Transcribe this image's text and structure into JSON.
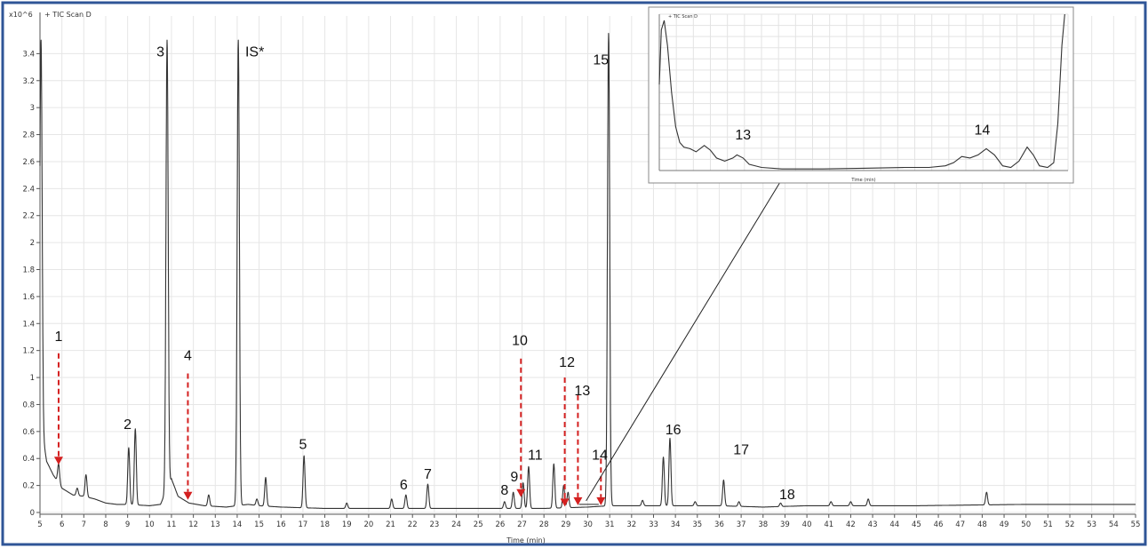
{
  "chart_data": {
    "type": "line",
    "title": "+ TIC Scan D",
    "xlabel": "Time (min)",
    "ylabel_multiplier": "x10^6",
    "xlim": [
      5,
      55
    ],
    "ylim": [
      0,
      3.6
    ],
    "x_ticks": [
      "5",
      "6",
      "7",
      "8",
      "9",
      "10",
      "11",
      "12",
      "13",
      "14",
      "15",
      "16",
      "17",
      "18",
      "19",
      "20",
      "21",
      "22",
      "23",
      "24",
      "25",
      "26",
      "27",
      "28",
      "29",
      "30",
      "31",
      "32",
      "33",
      "34",
      "35",
      "36",
      "37",
      "38",
      "39",
      "40",
      "41",
      "42",
      "43",
      "44",
      "45",
      "46",
      "47",
      "48",
      "49",
      "50",
      "51",
      "52",
      "53",
      "54",
      "55"
    ],
    "y_ticks": [
      "0",
      "0.2",
      "0.4",
      "0.6",
      "0.8",
      "1",
      "1.2",
      "1.4",
      "1.6",
      "1.8",
      "2",
      "2.2",
      "2.4",
      "2.6",
      "2.8",
      "3",
      "3.2",
      "3.4"
    ],
    "baseline_points": [
      [
        5.0,
        0.9
      ],
      [
        5.1,
        0.6
      ],
      [
        5.3,
        0.38
      ],
      [
        5.6,
        0.28
      ],
      [
        6.0,
        0.18
      ],
      [
        6.5,
        0.13
      ],
      [
        7.0,
        0.12
      ],
      [
        7.5,
        0.1
      ],
      [
        8.0,
        0.07
      ],
      [
        8.5,
        0.06
      ],
      [
        9.0,
        0.06
      ],
      [
        10.0,
        0.05
      ],
      [
        10.5,
        0.06
      ],
      [
        11.0,
        0.25
      ],
      [
        11.3,
        0.12
      ],
      [
        11.8,
        0.07
      ],
      [
        12.5,
        0.05
      ],
      [
        13.5,
        0.04
      ],
      [
        14.0,
        0.05
      ],
      [
        14.5,
        0.06
      ],
      [
        15.0,
        0.05
      ],
      [
        16.0,
        0.04
      ],
      [
        18.0,
        0.03
      ],
      [
        20.0,
        0.03
      ],
      [
        25.0,
        0.03
      ],
      [
        28.0,
        0.03
      ],
      [
        30.0,
        0.04
      ],
      [
        31.0,
        0.05
      ],
      [
        33.0,
        0.05
      ],
      [
        36.0,
        0.05
      ],
      [
        38.0,
        0.04
      ],
      [
        40.0,
        0.05
      ],
      [
        45.0,
        0.05
      ],
      [
        50.0,
        0.06
      ],
      [
        55.0,
        0.06
      ]
    ],
    "peaks": [
      {
        "x": 5.05,
        "y": 3.5
      },
      {
        "x": 5.85,
        "y": 0.36
      },
      {
        "x": 6.7,
        "y": 0.18
      },
      {
        "x": 7.1,
        "y": 0.28
      },
      {
        "x": 9.05,
        "y": 0.48
      },
      {
        "x": 9.35,
        "y": 0.62
      },
      {
        "x": 10.8,
        "y": 3.5
      },
      {
        "x": 12.7,
        "y": 0.13
      },
      {
        "x": 14.05,
        "y": 3.5
      },
      {
        "x": 14.9,
        "y": 0.1
      },
      {
        "x": 15.3,
        "y": 0.26
      },
      {
        "x": 17.05,
        "y": 0.42
      },
      {
        "x": 19.0,
        "y": 0.07
      },
      {
        "x": 21.05,
        "y": 0.1
      },
      {
        "x": 21.7,
        "y": 0.13
      },
      {
        "x": 22.7,
        "y": 0.21
      },
      {
        "x": 26.2,
        "y": 0.08
      },
      {
        "x": 26.6,
        "y": 0.15
      },
      {
        "x": 27.05,
        "y": 0.22
      },
      {
        "x": 27.3,
        "y": 0.34
      },
      {
        "x": 28.45,
        "y": 0.36
      },
      {
        "x": 28.9,
        "y": 0.2
      },
      {
        "x": 29.1,
        "y": 0.15
      },
      {
        "x": 30.95,
        "y": 3.55
      },
      {
        "x": 32.5,
        "y": 0.09
      },
      {
        "x": 33.45,
        "y": 0.41
      },
      {
        "x": 33.75,
        "y": 0.55
      },
      {
        "x": 34.9,
        "y": 0.08
      },
      {
        "x": 36.2,
        "y": 0.24
      },
      {
        "x": 36.9,
        "y": 0.08
      },
      {
        "x": 38.8,
        "y": 0.07
      },
      {
        "x": 41.1,
        "y": 0.08
      },
      {
        "x": 42.0,
        "y": 0.08
      },
      {
        "x": 42.8,
        "y": 0.1
      },
      {
        "x": 48.2,
        "y": 0.15
      }
    ],
    "peak_labels": [
      {
        "label": "1",
        "x": 5.85,
        "y": 1.27
      },
      {
        "label": "2",
        "x": 9.0,
        "y": 0.62
      },
      {
        "label": "3",
        "x": 10.5,
        "y": 3.38
      },
      {
        "label": "4",
        "x": 11.75,
        "y": 1.13
      },
      {
        "label": "IS*",
        "x": 14.8,
        "y": 3.38
      },
      {
        "label": "5",
        "x": 17.0,
        "y": 0.47
      },
      {
        "label": "6",
        "x": 21.6,
        "y": 0.17
      },
      {
        "label": "7",
        "x": 22.7,
        "y": 0.25
      },
      {
        "label": "8",
        "x": 26.2,
        "y": 0.13
      },
      {
        "label": "9",
        "x": 26.65,
        "y": 0.23
      },
      {
        "label": "10",
        "x": 26.9,
        "y": 1.24
      },
      {
        "label": "11",
        "x": 27.6,
        "y": 0.39
      },
      {
        "label": "12",
        "x": 29.05,
        "y": 1.08
      },
      {
        "label": "13",
        "x": 29.75,
        "y": 0.87
      },
      {
        "label": "14",
        "x": 30.55,
        "y": 0.39
      },
      {
        "label": "15",
        "x": 30.6,
        "y": 3.32
      },
      {
        "label": "16",
        "x": 33.9,
        "y": 0.58
      },
      {
        "label": "17",
        "x": 37.0,
        "y": 0.43
      },
      {
        "label": "18",
        "x": 39.1,
        "y": 0.1
      }
    ],
    "red_arrows": [
      {
        "peak": "1",
        "x": 5.85,
        "y_top": 1.18,
        "y_bottom": 0.36
      },
      {
        "peak": "4",
        "x": 11.75,
        "y_top": 1.03,
        "y_bottom": 0.1
      },
      {
        "peak": "10",
        "x": 26.95,
        "y_top": 1.14,
        "y_bottom": 0.12
      },
      {
        "peak": "12",
        "x": 28.95,
        "y_top": 1.0,
        "y_bottom": 0.05
      },
      {
        "peak": "13",
        "x": 29.55,
        "y_top": 0.87,
        "y_bottom": 0.06
      },
      {
        "peak": "14",
        "x": 30.6,
        "y_top": 0.4,
        "y_bottom": 0.06
      }
    ],
    "inset": {
      "title": "+ TIC Scan D",
      "xlabel": "Time (min)",
      "labels": [
        "13",
        "14"
      ],
      "zoom_region": [
        29.6,
        30.5
      ]
    },
    "grid": true
  },
  "colors": {
    "frame": "#2f5597",
    "trace": "#333333",
    "arrow": "#d42020",
    "grid": "#e6e6e6"
  }
}
